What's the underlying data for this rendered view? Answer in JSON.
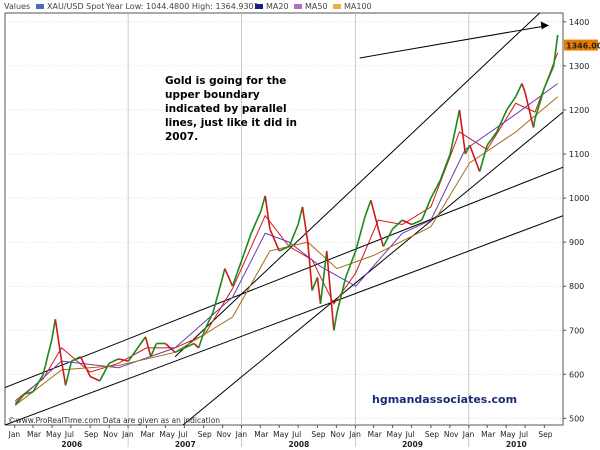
{
  "chart_data": {
    "type": "line",
    "legend": {
      "values_label": "Values",
      "instrument": "XAU/USD Spot",
      "range_text": "Year Low: 1044.4800  High: 1364.9301",
      "ma20": "MA20",
      "ma50": "MA50",
      "ma100": "MA100"
    },
    "colors": {
      "price_up": "#1a8a1a",
      "price_down": "#d01818",
      "ma20": "#d01818",
      "ma50": "#6a3fb0",
      "ma100": "#a86a1a",
      "trendline": "#000000",
      "current_price_box": "#e87c00",
      "grid": "#c8c8c8"
    },
    "ylim": [
      485,
      1420
    ],
    "y_ticks": [
      500,
      600,
      700,
      800,
      900,
      1000,
      1100,
      1200,
      1300,
      1400
    ],
    "y_tick_labels": [
      "500",
      "600",
      "700",
      "800",
      "900",
      "1000",
      "1100",
      "1200",
      "1300",
      "1400"
    ],
    "current_price": 1346.0,
    "current_price_label": "1346.00",
    "x_range": [
      "2005-12-01",
      "2010-10-31"
    ],
    "x_month_labels": [
      "Jan",
      "Mar",
      "May",
      "Jul",
      "Sep",
      "Nov",
      "Jan",
      "Mar",
      "May",
      "Jul",
      "Sep",
      "Nov",
      "Jan",
      "Mar",
      "May",
      "Jul",
      "Sep",
      "Nov",
      "Jan",
      "Mar",
      "May",
      "Jul",
      "Sep",
      "Nov",
      "Jan",
      "Mar",
      "May",
      "Jul",
      "Sep"
    ],
    "x_year_labels": [
      "2006",
      "2007",
      "2008",
      "2009",
      "2010"
    ],
    "price_series": {
      "name": "XAU/USD Spot",
      "x": [
        "2006-01-03",
        "2006-02-01",
        "2006-03-01",
        "2006-04-03",
        "2006-05-01",
        "2006-05-12",
        "2006-06-01",
        "2006-06-14",
        "2006-07-03",
        "2006-08-01",
        "2006-09-01",
        "2006-10-02",
        "2006-11-01",
        "2006-12-01",
        "2007-01-02",
        "2007-02-01",
        "2007-02-26",
        "2007-03-15",
        "2007-04-02",
        "2007-05-01",
        "2007-06-01",
        "2007-07-02",
        "2007-08-01",
        "2007-08-16",
        "2007-09-04",
        "2007-10-01",
        "2007-11-01",
        "2007-11-08",
        "2007-12-03",
        "2008-01-02",
        "2008-02-01",
        "2008-03-03",
        "2008-03-17",
        "2008-04-01",
        "2008-05-01",
        "2008-06-02",
        "2008-07-01",
        "2008-07-15",
        "2008-08-01",
        "2008-08-15",
        "2008-09-01",
        "2008-09-11",
        "2008-10-01",
        "2008-10-24",
        "2008-11-03",
        "2008-12-01",
        "2009-01-02",
        "2009-02-02",
        "2009-02-20",
        "2009-03-16",
        "2009-04-01",
        "2009-05-01",
        "2009-06-01",
        "2009-07-01",
        "2009-08-03",
        "2009-09-01",
        "2009-10-01",
        "2009-11-02",
        "2009-12-02",
        "2009-12-21",
        "2010-01-04",
        "2010-02-05",
        "2010-03-01",
        "2010-04-01",
        "2010-05-03",
        "2010-06-01",
        "2010-06-21",
        "2010-07-01",
        "2010-07-28",
        "2010-08-02",
        "2010-09-01",
        "2010-10-01",
        "2010-10-14"
      ],
      "values": [
        530,
        555,
        560,
        600,
        680,
        725,
        630,
        575,
        630,
        640,
        595,
        585,
        625,
        635,
        630,
        660,
        685,
        640,
        670,
        670,
        650,
        660,
        670,
        660,
        700,
        740,
        820,
        840,
        800,
        860,
        920,
        970,
        1005,
        930,
        880,
        890,
        940,
        980,
        900,
        790,
        820,
        760,
        880,
        700,
        740,
        820,
        880,
        960,
        995,
        930,
        890,
        930,
        950,
        940,
        950,
        1000,
        1040,
        1100,
        1200,
        1100,
        1120,
        1060,
        1120,
        1150,
        1200,
        1230,
        1260,
        1240,
        1160,
        1180,
        1250,
        1300,
        1370
      ]
    },
    "ma_series": [
      {
        "name": "MA20",
        "x": [
          "2006-01-03",
          "2006-04-03",
          "2006-06-01",
          "2006-09-01",
          "2006-12-01",
          "2007-03-01",
          "2007-06-01",
          "2007-09-04",
          "2007-12-03",
          "2008-03-17",
          "2008-06-02",
          "2008-08-15",
          "2008-10-24",
          "2009-01-02",
          "2009-03-16",
          "2009-06-01",
          "2009-09-01",
          "2009-12-02",
          "2010-03-01",
          "2010-06-01",
          "2010-08-02",
          "2010-10-14"
        ],
        "values": [
          540,
          590,
          660,
          605,
          625,
          660,
          660,
          690,
          795,
          960,
          890,
          860,
          760,
          830,
          950,
          940,
          980,
          1150,
          1110,
          1215,
          1195,
          1330
        ]
      },
      {
        "name": "MA50",
        "x": [
          "2006-01-03",
          "2006-06-01",
          "2006-12-01",
          "2007-06-01",
          "2007-12-03",
          "2008-03-17",
          "2008-06-02",
          "2008-09-11",
          "2009-01-02",
          "2009-06-01",
          "2009-09-01",
          "2009-12-20",
          "2010-06-01",
          "2010-10-14"
        ],
        "values": [
          535,
          630,
          615,
          660,
          775,
          920,
          900,
          845,
          800,
          920,
          950,
          1110,
          1190,
          1260
        ]
      },
      {
        "name": "MA100",
        "x": [
          "2006-01-03",
          "2006-06-01",
          "2006-12-01",
          "2007-06-01",
          "2007-12-03",
          "2008-04-01",
          "2008-08-01",
          "2008-11-03",
          "2009-03-01",
          "2009-09-01",
          "2010-01-04",
          "2010-06-01",
          "2010-10-14"
        ],
        "values": [
          530,
          610,
          620,
          650,
          730,
          880,
          900,
          840,
          870,
          935,
          1080,
          1150,
          1230
        ]
      }
    ],
    "trendlines": [
      {
        "x": [
          "2005-12-01",
          "2010-10-31"
        ],
        "values": [
          570,
          1070
        ]
      },
      {
        "x": [
          "2005-12-01",
          "2010-10-31"
        ],
        "values": [
          485,
          960
        ]
      },
      {
        "x": [
          "2007-06-01",
          "2010-10-31"
        ],
        "values": [
          470,
          1195
        ]
      },
      {
        "x": [
          "2007-06-01",
          "2010-10-31"
        ],
        "values": [
          640,
          1470
        ]
      },
      {
        "x": [
          "2009-01-15",
          "2010-09-15"
        ],
        "values": [
          1318,
          1392
        ]
      }
    ],
    "annotation": [
      "Gold is going for the",
      "upper boundary",
      "indicated by parallel",
      "lines, just like it did in",
      "2007."
    ],
    "source_text": "©www.ProRealTime.com Data are given as an indication",
    "watermark": "hgmandassociates.com"
  }
}
